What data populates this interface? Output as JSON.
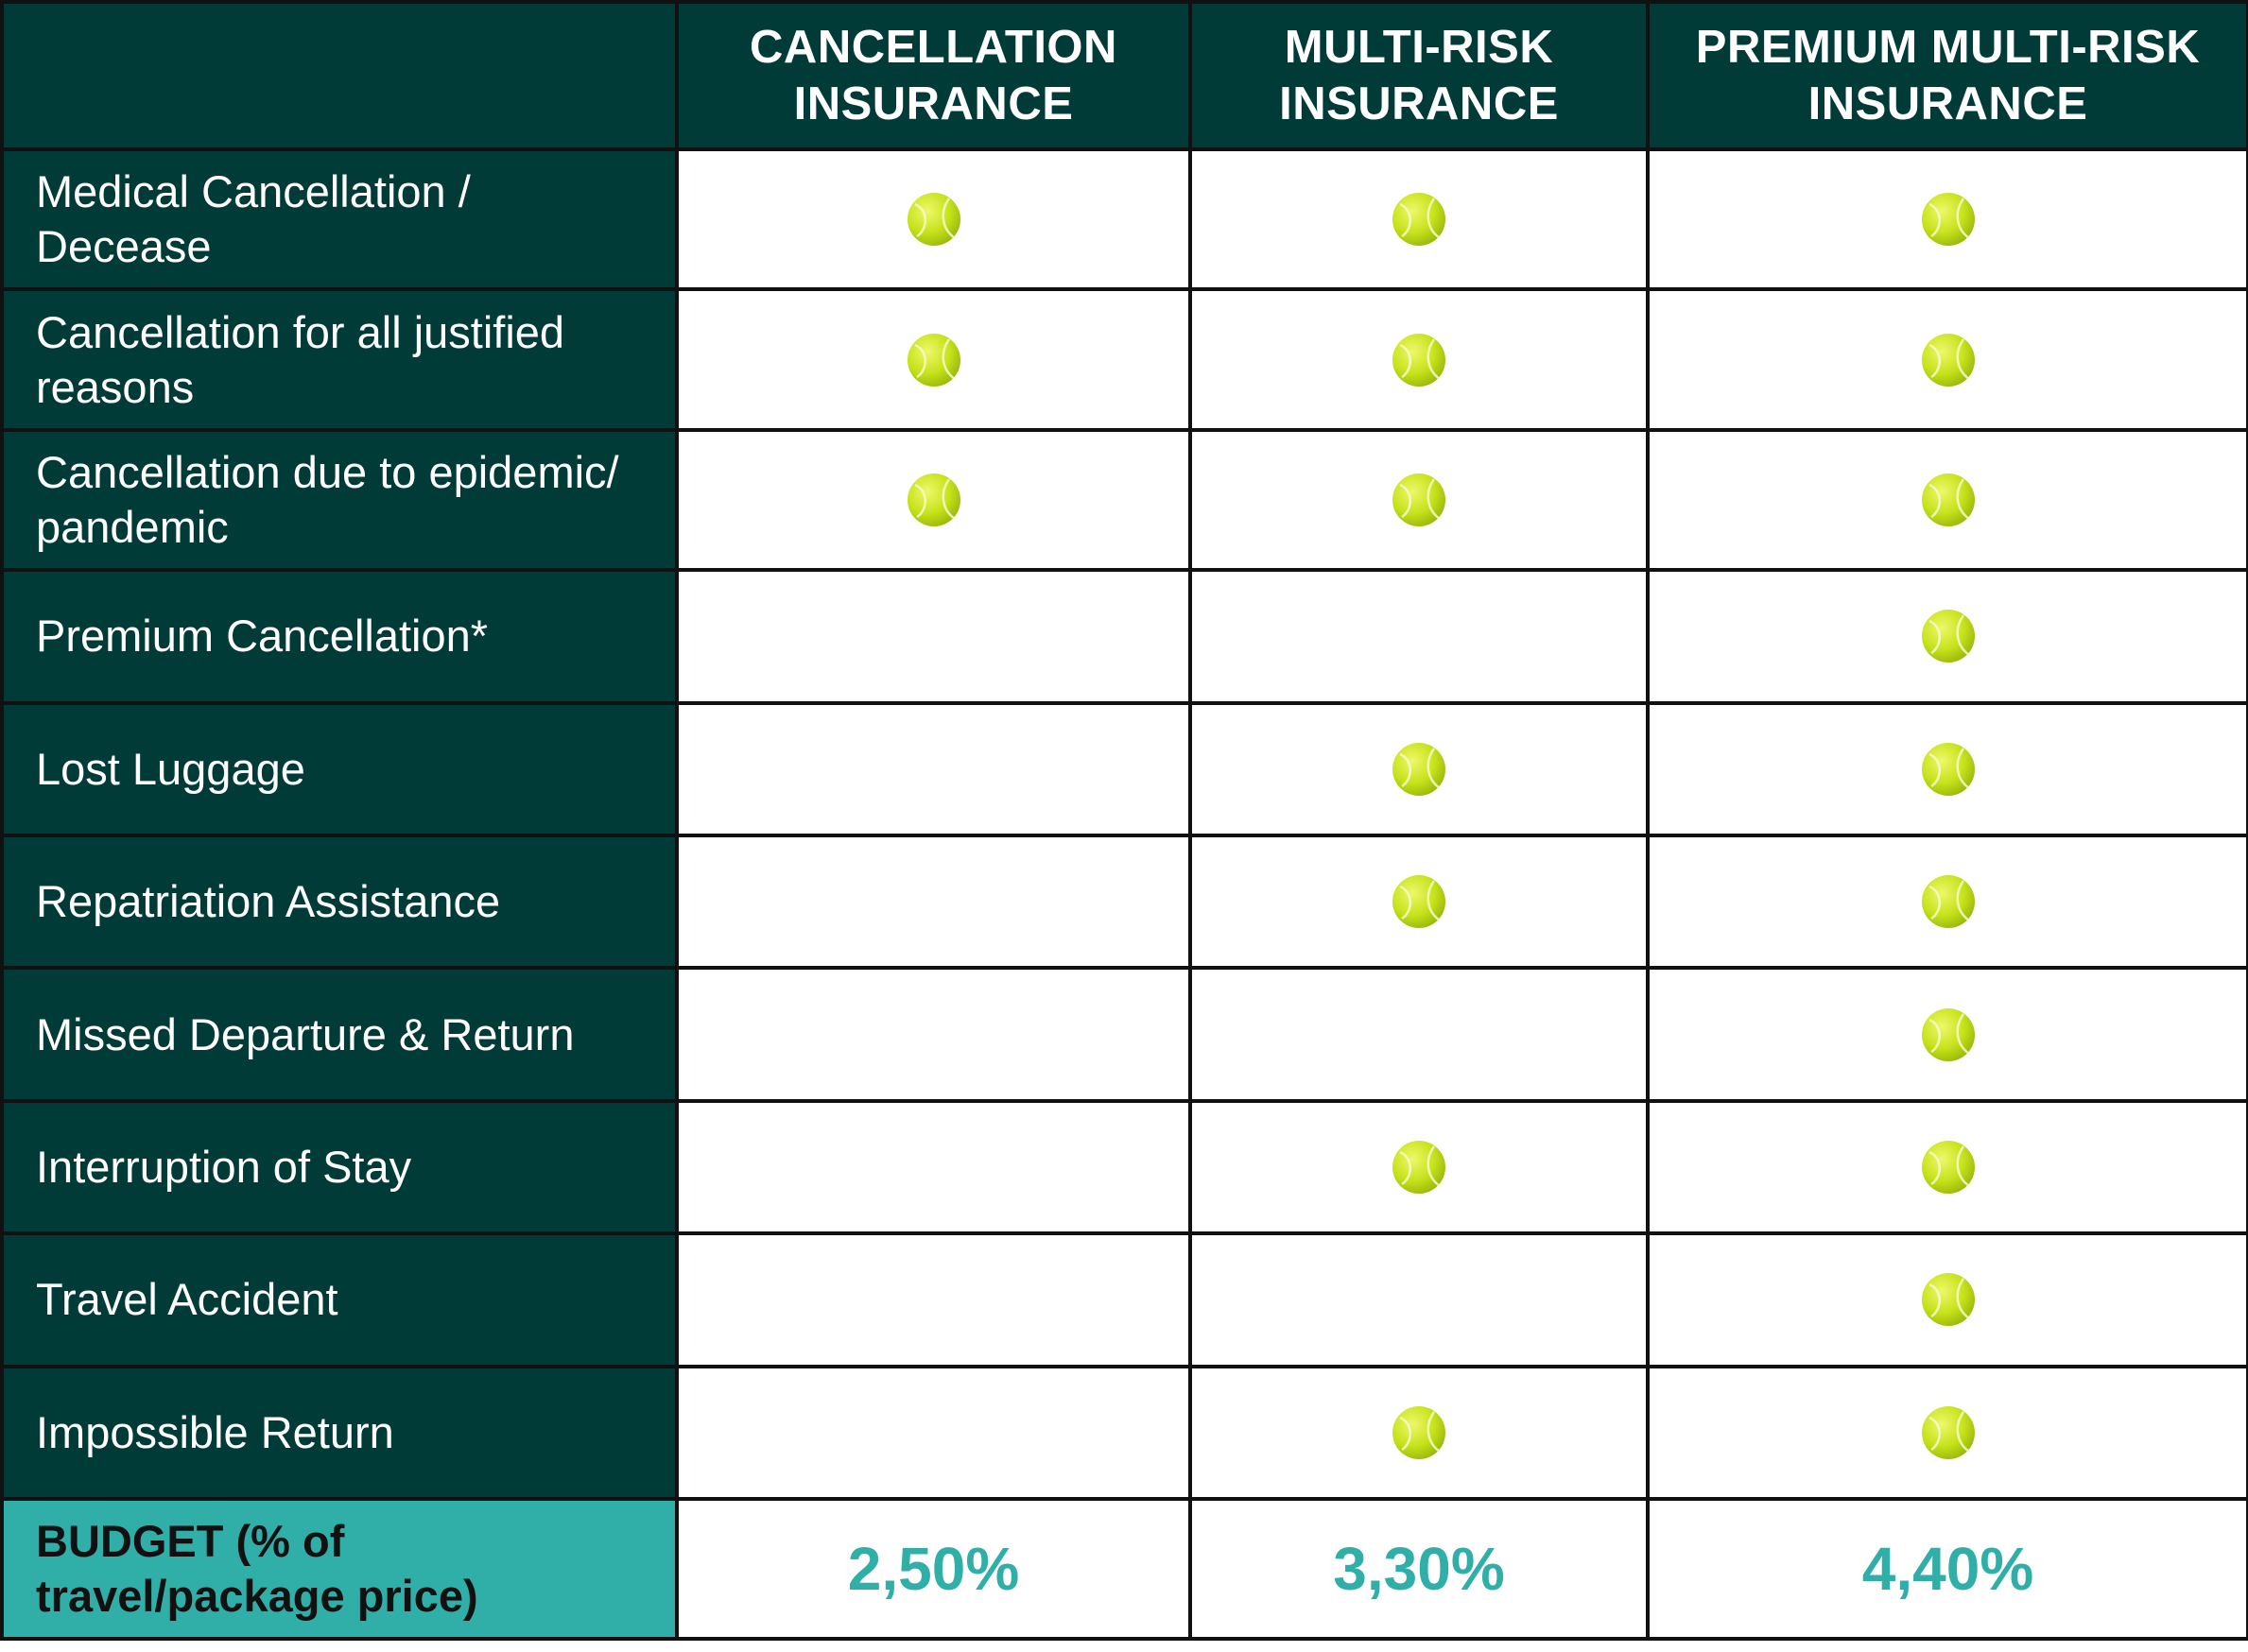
{
  "columns": [
    {
      "line1": "CANCELLATION",
      "line2": "INSURANCE"
    },
    {
      "line1": "MULTI-RISK",
      "line2": "INSURANCE"
    },
    {
      "line1": "PREMIUM MULTI-RISK",
      "line2": "INSURANCE"
    }
  ],
  "rows": [
    {
      "line1": "Medical Cancellation /",
      "line2": "Decease",
      "covered": [
        true,
        true,
        true
      ]
    },
    {
      "line1": "Cancellation for all justified",
      "line2": "reasons",
      "covered": [
        true,
        true,
        true
      ]
    },
    {
      "line1": "Cancellation due to epidemic/",
      "line2": "pandemic",
      "covered": [
        true,
        true,
        true
      ]
    },
    {
      "line1": "Premium Cancellation*",
      "line2": "",
      "covered": [
        false,
        false,
        true
      ]
    },
    {
      "line1": "Lost Luggage",
      "line2": "",
      "covered": [
        false,
        true,
        true
      ]
    },
    {
      "line1": "Repatriation Assistance",
      "line2": "",
      "covered": [
        false,
        true,
        true
      ]
    },
    {
      "line1": "Missed Departure & Return",
      "line2": "",
      "covered": [
        false,
        false,
        true
      ]
    },
    {
      "line1": "Interruption of Stay",
      "line2": "",
      "covered": [
        false,
        true,
        true
      ]
    },
    {
      "line1": "Travel Accident",
      "line2": "",
      "covered": [
        false,
        false,
        true
      ]
    },
    {
      "line1": "Impossible Return",
      "line2": "",
      "covered": [
        false,
        true,
        true
      ]
    }
  ],
  "budget": {
    "label_line1": "BUDGET (% of",
    "label_line2": "travel/package price)",
    "values": [
      "2,50%",
      "3,30%",
      "4,40%"
    ]
  },
  "icons": {
    "covered": "tennis-ball-icon"
  },
  "colors": {
    "header_bg": "#013b38",
    "budget_label_bg": "#30aea8",
    "price_text": "#30aea8",
    "ball": "#c9e81c",
    "border": "#111111"
  }
}
